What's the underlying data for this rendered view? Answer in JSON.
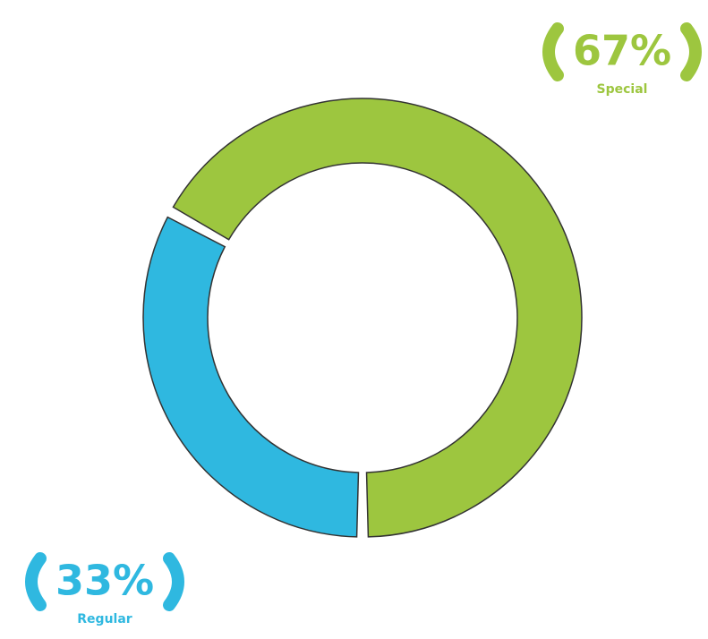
{
  "chart_data": {
    "type": "donut",
    "categories": [
      "Special",
      "Regular"
    ],
    "values": [
      67,
      33
    ],
    "value_labels": [
      "67%",
      "33%"
    ],
    "colors": [
      "#9dc63f",
      "#2fb8e0"
    ]
  }
}
